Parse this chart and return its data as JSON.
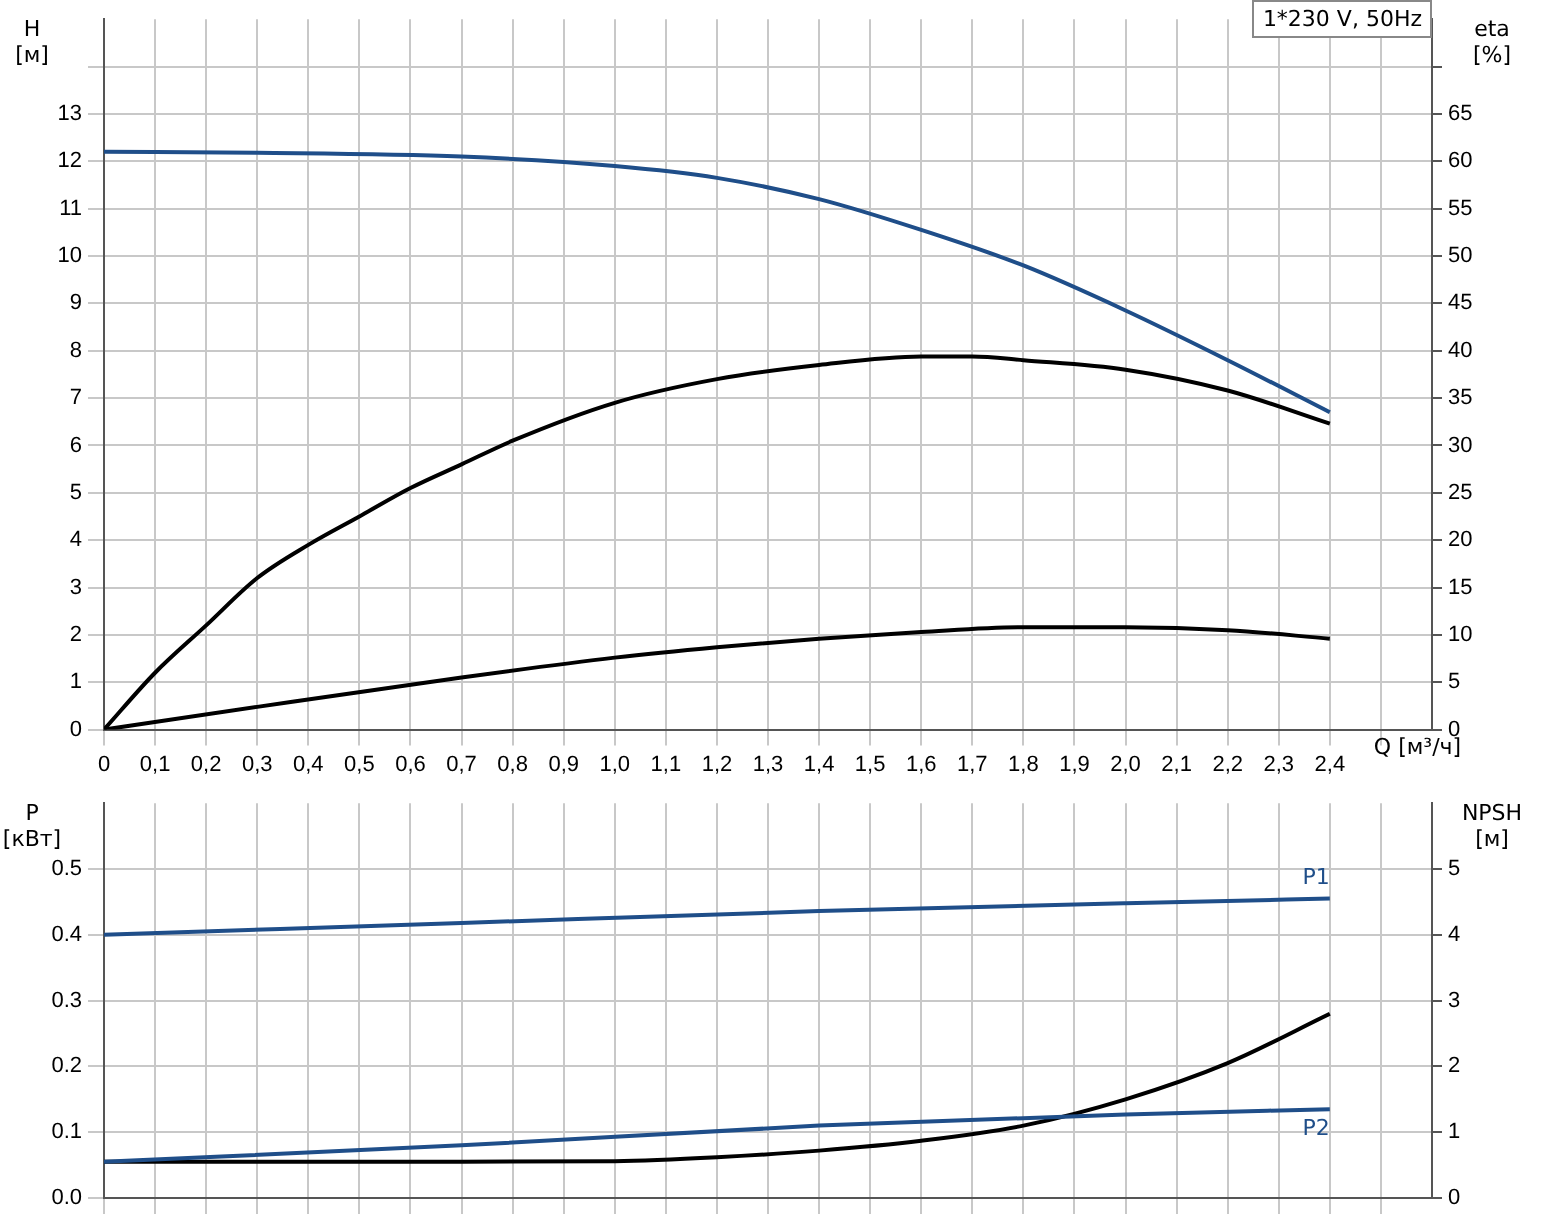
{
  "chart_data": [
    {
      "type": "line",
      "title": "1*230 V, 50Hz",
      "xlabel": "Q [м³/ч]",
      "ylabel": "H [м]",
      "y2label": "eta [%]",
      "xlim": [
        0,
        2.6
      ],
      "xticks": [
        0,
        {
          "value": 0.1,
          "label": "0,1"
        },
        {
          "value": 0.2,
          "label": "0,2"
        },
        {
          "value": 0.3,
          "label": "0,3"
        },
        {
          "value": 0.4,
          "label": "0,4"
        },
        {
          "value": 0.5,
          "label": "0,5"
        },
        {
          "value": 0.6,
          "label": "0,6"
        },
        {
          "value": 0.7,
          "label": "0,7"
        },
        {
          "value": 0.8,
          "label": "0,8"
        },
        {
          "value": 0.9,
          "label": "0,9"
        },
        {
          "value": 1,
          "label": "1,0"
        },
        {
          "value": 1.1,
          "label": "1,1"
        },
        {
          "value": 1.2,
          "label": "1,2"
        },
        {
          "value": 1.3,
          "label": "1,3"
        },
        {
          "value": 1.4,
          "label": "1,4"
        },
        {
          "value": 1.5,
          "label": "1,5"
        },
        {
          "value": 1.6,
          "label": "1,6"
        },
        {
          "value": 1.7,
          "label": "1,7"
        },
        {
          "value": 1.8,
          "label": "1,8"
        },
        {
          "value": 1.9,
          "label": "1,9"
        },
        {
          "value": 2,
          "label": "2,0"
        },
        {
          "value": 2.1,
          "label": "2,1"
        },
        {
          "value": 2.2,
          "label": "2,2"
        },
        {
          "value": 2.3,
          "label": "2,3"
        },
        {
          "value": 2.4,
          "label": "2,4"
        },
        {
          "value": 2.5,
          "label": null
        }
      ],
      "ylim": [
        0,
        15
      ],
      "yticks": [
        0,
        1,
        2,
        3,
        4,
        5,
        6,
        7,
        8,
        9,
        10,
        11,
        12,
        13,
        {
          "value": 14,
          "label": null
        }
      ],
      "y2lim": [
        0,
        75
      ],
      "y2ticks": [
        0,
        5,
        10,
        15,
        20,
        25,
        30,
        35,
        40,
        45,
        50,
        55,
        60,
        65,
        {
          "value": 70,
          "label": null
        }
      ],
      "grid": true,
      "legend": false,
      "marker": "none",
      "line_style": "solid",
      "series": [
        {
          "color": "#1f4e89",
          "x": [
            0,
            0.3,
            0.7,
            1.0,
            1.2,
            1.4,
            1.6,
            1.8,
            2.0,
            2.2,
            2.4
          ],
          "values": [
            12.2,
            12.18,
            12.1,
            11.9,
            11.65,
            11.2,
            10.55,
            9.8,
            8.85,
            7.8,
            6.7
          ]
        },
        {
          "color": "#000000",
          "axis": "y2",
          "x": [
            0,
            0.1,
            0.2,
            0.3,
            0.4,
            0.5,
            0.6,
            0.7,
            0.8,
            1.0,
            1.2,
            1.4,
            1.6,
            1.7,
            1.8,
            2.0,
            2.2,
            2.4
          ],
          "values": [
            0,
            6,
            11,
            16,
            19.5,
            22.5,
            25.5,
            28,
            30.5,
            34.5,
            37,
            38.5,
            39.4,
            39.4,
            39,
            38,
            35.8,
            32.3
          ]
        },
        {
          "color": "#000000",
          "axis": "y2",
          "x": [
            0,
            0.3,
            0.7,
            1.0,
            1.2,
            1.4,
            1.6,
            1.8,
            2.0,
            2.2,
            2.4
          ],
          "values": [
            0,
            2.4,
            5.5,
            7.6,
            8.7,
            9.6,
            10.3,
            10.8,
            10.8,
            10.5,
            9.6
          ]
        }
      ]
    },
    {
      "type": "line",
      "ylabel": "P [кВт]",
      "y2label": "NPSH [м]",
      "xlim": [
        0,
        2.6
      ],
      "xticks": [
        0,
        0.1,
        0.2,
        0.3,
        0.4,
        0.5,
        0.6,
        0.7,
        0.8,
        0.9,
        1,
        1.1,
        1.2,
        1.3,
        1.4,
        1.5,
        1.6,
        1.7,
        1.8,
        1.9,
        2,
        2.1,
        2.2,
        2.3,
        2.4,
        2.5
      ],
      "ylim": [
        0,
        0.6
      ],
      "yticks": [
        {
          "value": 0,
          "label": "0.0"
        },
        0.1,
        0.2,
        0.3,
        0.4,
        0.5
      ],
      "y2lim": [
        0,
        6
      ],
      "y2ticks": [
        0,
        1,
        2,
        3,
        4,
        5
      ],
      "tick_labels": "y",
      "grid": true,
      "legend": false,
      "marker": "none",
      "line_style": "solid",
      "series": [
        {
          "name": "P1",
          "color": "#1f4e89",
          "x": [
            0,
            0.7,
            1.4,
            2.0,
            2.4
          ],
          "values": [
            0.4,
            0.418,
            0.436,
            0.448,
            0.455
          ]
        },
        {
          "name": "P2",
          "color": "#1f4e89",
          "x": [
            0,
            0.7,
            1.4,
            2.0,
            2.4
          ],
          "values": [
            0.055,
            0.08,
            0.11,
            0.127,
            0.135
          ]
        },
        {
          "color": "#000000",
          "axis": "y2",
          "x": [
            0,
            0.7,
            1.0,
            1.2,
            1.4,
            1.6,
            1.8,
            2.0,
            2.2,
            2.4
          ],
          "values": [
            0.55,
            0.55,
            0.56,
            0.62,
            0.72,
            0.87,
            1.1,
            1.5,
            2.05,
            2.8
          ]
        }
      ]
    }
  ]
}
